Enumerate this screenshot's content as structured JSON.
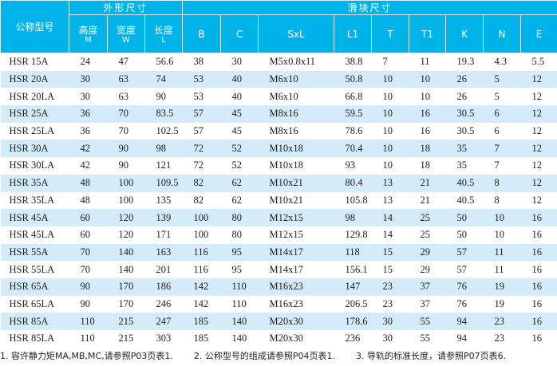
{
  "colors": {
    "header_bg": "#00b4ea",
    "row_alt": "#d4ebf9"
  },
  "header": {
    "model": "公称型号",
    "group_outer": "外形尺寸",
    "group_slider": "滑块尺寸",
    "columns": [
      {
        "label": "高度",
        "unit": "M"
      },
      {
        "label": "宽度",
        "unit": "W"
      },
      {
        "label": "长度",
        "unit": "L"
      },
      {
        "label": "B"
      },
      {
        "label": "C"
      },
      {
        "label": "SxL"
      },
      {
        "label": "L1"
      },
      {
        "label": "T"
      },
      {
        "label": "T1"
      },
      {
        "label": "K"
      },
      {
        "label": "N"
      },
      {
        "label": "E"
      }
    ]
  },
  "rows": [
    [
      "HSR  15A",
      "24",
      "47",
      "56.6",
      "38",
      "30",
      "M5x0.8x11",
      "38.8",
      "7",
      "11",
      "19.3",
      "4.3",
      "5.5"
    ],
    [
      "HSR  20A",
      "30",
      "63",
      "74",
      "53",
      "40",
      "M6x10",
      "50.8",
      "10",
      "10",
      "26",
      "5",
      "12"
    ],
    [
      "HSR  20LA",
      "30",
      "63",
      "90",
      "53",
      "40",
      "M6x10",
      "66.8",
      "10",
      "10",
      "26",
      "5",
      "12"
    ],
    [
      "HSR  25A",
      "36",
      "70",
      "83.5",
      "57",
      "45",
      "M8x16",
      "59.5",
      "10",
      "16",
      "30.5",
      "6",
      "12"
    ],
    [
      "HSR  25LA",
      "36",
      "70",
      "102.5",
      "57",
      "45",
      "M8x16",
      "78.6",
      "10",
      "16",
      "30.5",
      "6",
      "12"
    ],
    [
      "HSR  30A",
      "42",
      "90",
      "98",
      "72",
      "52",
      "M10x18",
      "70.4",
      "10",
      "18",
      "35",
      "7",
      "12"
    ],
    [
      "HSR  30LA",
      "42",
      "90",
      "121",
      "72",
      "52",
      "M10x18",
      "93",
      "10",
      "18",
      "35",
      "7",
      "12"
    ],
    [
      "HSR  35A",
      "48",
      "100",
      "109.5",
      "82",
      "62",
      "M10x21",
      "80.4",
      "13",
      "21",
      "40.5",
      "8",
      "12"
    ],
    [
      "HSR  35LA",
      "48",
      "100",
      "135",
      "82",
      "62",
      "M10x21",
      "105.8",
      "13",
      "21",
      "40.5",
      "8",
      "12"
    ],
    [
      "HSR  45A",
      "60",
      "120",
      "139",
      "100",
      "80",
      "M12x15",
      "98",
      "14",
      "25",
      "50",
      "10",
      "16"
    ],
    [
      "HSR  45LA",
      "60",
      "120",
      "171",
      "100",
      "80",
      "M12x15",
      "129.8",
      "14",
      "25",
      "50",
      "10",
      "16"
    ],
    [
      "HSR  55A",
      "70",
      "140",
      "163",
      "116",
      "95",
      "M14x17",
      "118",
      "15",
      "29",
      "57",
      "11",
      "16"
    ],
    [
      "HSR  55LA",
      "70",
      "140",
      "201",
      "116",
      "95",
      "M14x17",
      "156.1",
      "15",
      "29",
      "57",
      "11",
      "16"
    ],
    [
      "HSR  65A",
      "90",
      "170",
      "186",
      "142",
      "110",
      "M16x23",
      "147",
      "23",
      "37",
      "76",
      "19",
      "16"
    ],
    [
      "HSR  65LA",
      "90",
      "170",
      "246",
      "142",
      "110",
      "M16x23",
      "206.5",
      "23",
      "37",
      "76",
      "19",
      "16"
    ],
    [
      "HSR  85A",
      "110",
      "215",
      "247",
      "185",
      "140",
      "M20x30",
      "178.6",
      "30",
      "55",
      "94",
      "23",
      "16"
    ],
    [
      "HSR  85LA",
      "110",
      "215",
      "303",
      "185",
      "140",
      "M20x30",
      "236",
      "30",
      "55",
      "94",
      "23",
      "16"
    ]
  ],
  "notes": [
    "1. 容许静力矩MA,MB,MC,请参照P03页表1.",
    "2. 公称型号的组成请参照P04页表1.",
    "3. 导轨的标准长度，请参照P07页表6."
  ]
}
